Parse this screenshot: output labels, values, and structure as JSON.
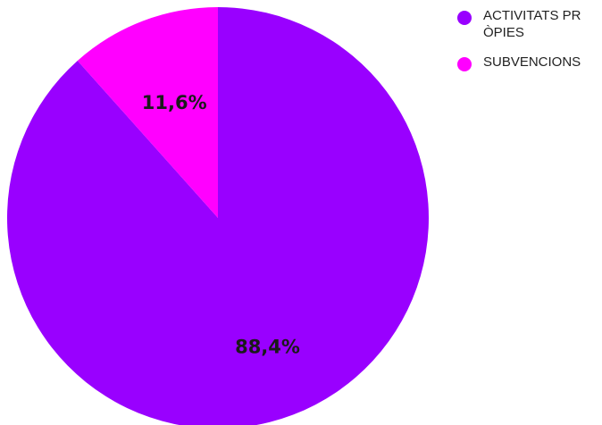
{
  "chart_data": {
    "type": "pie",
    "categories": [
      "ACTIVITATS PRÒPIES",
      "SUBVENCIONS"
    ],
    "values": [
      88.4,
      11.6
    ],
    "data_labels": [
      "88,4%",
      "11,6%"
    ],
    "colors": [
      "#9900ff",
      "#ff00ff"
    ],
    "title": "",
    "legend_position": "top-right"
  },
  "legend": {
    "items": [
      {
        "label": "ACTIVITATS PRÒPIES",
        "color": "#9900ff"
      },
      {
        "label": "SUBVENCIONS",
        "color": "#ff00ff"
      }
    ]
  }
}
